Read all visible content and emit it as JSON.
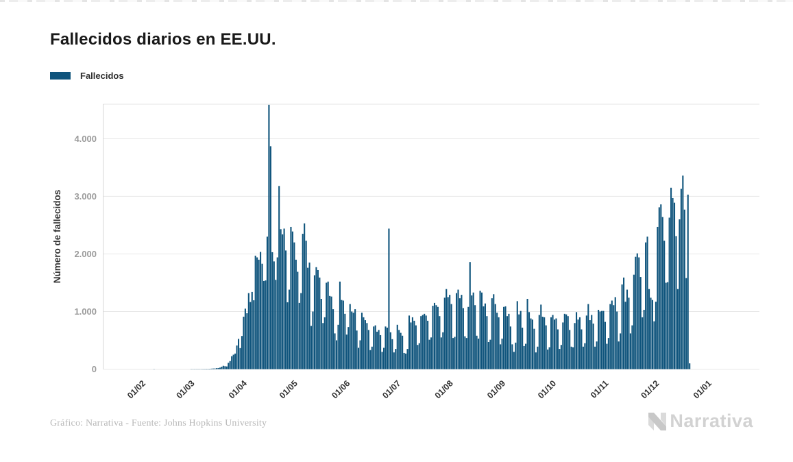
{
  "page": {
    "title": "Fallecidos diarios en EE.UU.",
    "footer_credit": "Gráfico: Narrativa - Fuente: Johns Hopkins University",
    "brand_name": "Narrativa"
  },
  "colors": {
    "bar": "#0f547c",
    "grid": "#e6e6e6",
    "axis_line": "#d6d6d6",
    "y_tick_label": "#9b9b9b",
    "x_tick_label": "#333333",
    "axis_title": "#333333",
    "title": "#191919",
    "footer": "#b9b9b9",
    "brand": "#d2d2d2"
  },
  "chart_data": {
    "type": "bar",
    "title": "Fallecidos diarios en EE.UU.",
    "ylabel": "Número de fallecidos",
    "xlabel": "",
    "legend": [
      {
        "label": "Fallecidos",
        "color": "#0f547c"
      }
    ],
    "legend_position": "top-left",
    "grid": "horizontal",
    "ylim": [
      0,
      4600
    ],
    "y_ticks": [
      {
        "value": 0,
        "label": "0"
      },
      {
        "value": 1000,
        "label": "1.000"
      },
      {
        "value": 2000,
        "label": "2.000"
      },
      {
        "value": 3000,
        "label": "3.000"
      },
      {
        "value": 4000,
        "label": "4.000"
      }
    ],
    "x_axis": {
      "tick_labels": [
        "01/02",
        "01/03",
        "01/04",
        "01/05",
        "01/06",
        "01/07",
        "01/08",
        "01/09",
        "01/10",
        "01/11",
        "01/12",
        "01/01"
      ],
      "tick_day_offsets": [
        10,
        39,
        70,
        100,
        131,
        161,
        192,
        223,
        253,
        284,
        314,
        345
      ]
    },
    "series": [
      {
        "name": "Fallecidos",
        "color": "#0f547c",
        "frequency": "daily",
        "start_date": "2020-01-22",
        "end_date": "2020-12-20",
        "values": [
          0,
          0,
          0,
          0,
          0,
          0,
          0,
          0,
          0,
          0,
          0,
          0,
          0,
          0,
          0,
          0,
          1,
          0,
          0,
          0,
          0,
          0,
          0,
          0,
          0,
          0,
          0,
          0,
          0,
          0,
          0,
          0,
          0,
          0,
          0,
          0,
          0,
          0,
          1,
          1,
          1,
          2,
          3,
          2,
          3,
          4,
          4,
          5,
          5,
          6,
          8,
          10,
          11,
          16,
          18,
          26,
          42,
          57,
          50,
          46,
          110,
          140,
          225,
          250,
          270,
          410,
          525,
          365,
          575,
          910,
          1050,
          970,
          1320,
          1165,
          1340,
          1195,
          1970,
          1940,
          1900,
          2035,
          1830,
          1530,
          1540,
          2300,
          4590,
          3870,
          2030,
          1870,
          1550,
          1940,
          3180,
          2430,
          2340,
          2440,
          2060,
          1160,
          1380,
          2470,
          2390,
          2200,
          1900,
          1690,
          1150,
          1320,
          2350,
          2530,
          2230,
          1760,
          1850,
          750,
          1000,
          1630,
          1770,
          1720,
          1590,
          1220,
          800,
          900,
          1500,
          1520,
          1270,
          1260,
          1040,
          620,
          500,
          770,
          1520,
          1200,
          1190,
          960,
          600,
          730,
          1130,
          1000,
          980,
          1040,
          670,
          370,
          500,
          980,
          900,
          850,
          800,
          680,
          330,
          390,
          740,
          760,
          650,
          680,
          590,
          300,
          370,
          740,
          720,
          2440,
          640,
          520,
          290,
          350,
          770,
          680,
          630,
          580,
          280,
          270,
          350,
          930,
          810,
          900,
          840,
          760,
          420,
          450,
          920,
          940,
          960,
          930,
          840,
          510,
          550,
          1100,
          1150,
          1110,
          1080,
          920,
          550,
          640,
          1240,
          1390,
          1250,
          1290,
          1130,
          540,
          560,
          1320,
          1380,
          1230,
          1290,
          1060,
          570,
          540,
          1080,
          1860,
          1280,
          1330,
          1110,
          580,
          530,
          1360,
          1330,
          1090,
          1140,
          920,
          470,
          510,
          1230,
          1300,
          1130,
          980,
          900,
          430,
          530,
          1080,
          1090,
          920,
          960,
          740,
          430,
          300,
          460,
          1180,
          950,
          1010,
          720,
          400,
          440,
          1220,
          990,
          880,
          860,
          700,
          290,
          390,
          940,
          1120,
          910,
          900,
          760,
          340,
          380,
          900,
          940,
          860,
          880,
          690,
          350,
          420,
          810,
          960,
          950,
          920,
          680,
          390,
          380,
          800,
          990,
          860,
          900,
          690,
          390,
          450,
          930,
          1130,
          850,
          940,
          790,
          390,
          480,
          1030,
          1000,
          1010,
          1010,
          820,
          440,
          540,
          1130,
          1190,
          1110,
          1250,
          1000,
          480,
          620,
          1470,
          1590,
          1170,
          1380,
          1240,
          620,
          760,
          1640,
          1950,
          2010,
          1940,
          1600,
          900,
          1030,
          2200,
          2300,
          1390,
          1240,
          1200,
          830,
          1170,
          2470,
          2810,
          2860,
          2640,
          2230,
          1500,
          1510,
          2630,
          3150,
          2970,
          2890,
          2310,
          1390,
          2600,
          3130,
          3360,
          2770,
          1580,
          3030,
          100
        ]
      }
    ]
  }
}
